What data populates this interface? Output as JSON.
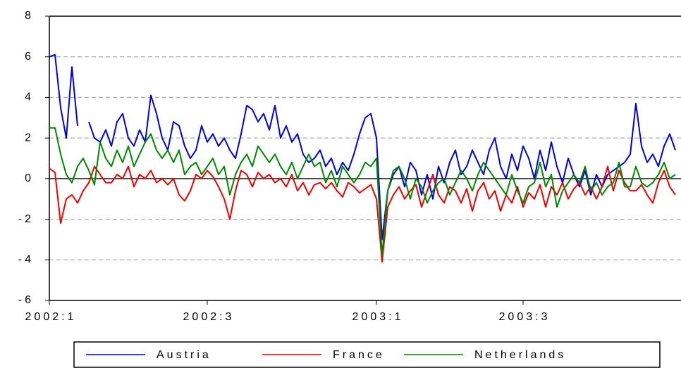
{
  "chart_data": {
    "type": "line",
    "categories": [
      "2002:1",
      null,
      null,
      null,
      null,
      null,
      null,
      null,
      null,
      null,
      null,
      null,
      null,
      null,
      null,
      null,
      null,
      null,
      null,
      null,
      null,
      null,
      null,
      null,
      null,
      null,
      null,
      null,
      "2002:3",
      null,
      null,
      null,
      null,
      null,
      null,
      null,
      null,
      null,
      null,
      null,
      null,
      null,
      null,
      null,
      null,
      null,
      null,
      null,
      null,
      null,
      null,
      null,
      null,
      null,
      null,
      null,
      null,
      null,
      "2003:1",
      null,
      null,
      null,
      null,
      null,
      null,
      null,
      null,
      null,
      null,
      null,
      null,
      null,
      null,
      null,
      null,
      null,
      null,
      null,
      null,
      null,
      null,
      null,
      null,
      null,
      "2003:3",
      null,
      null,
      null,
      null,
      null,
      null,
      null,
      null,
      null,
      null,
      null,
      null,
      null,
      null,
      null,
      null,
      null,
      null,
      null,
      null,
      null,
      null,
      null,
      null,
      null,
      null,
      null
    ],
    "series": [
      {
        "name": "Austria",
        "color": "#0000dd",
        "values": [
          6.0,
          6.1,
          3.5,
          2.0,
          5.5,
          2.6,
          null,
          2.8,
          2.0,
          1.8,
          2.4,
          1.6,
          2.8,
          3.2,
          2.0,
          1.6,
          2.4,
          1.8,
          4.1,
          3.2,
          2.0,
          1.4,
          2.8,
          2.6,
          1.6,
          1.0,
          1.4,
          2.6,
          1.8,
          2.2,
          1.6,
          2.0,
          1.4,
          1.0,
          2.2,
          3.6,
          3.4,
          2.8,
          3.2,
          2.4,
          3.6,
          2.0,
          2.6,
          1.8,
          2.2,
          1.2,
          0.8,
          1.0,
          1.4,
          0.6,
          1.0,
          0.2,
          0.8,
          0.4,
          1.2,
          2.2,
          3.0,
          3.2,
          2.0,
          -3.0,
          -0.6,
          0.2,
          0.6,
          -0.4,
          0.8,
          0.4,
          -0.8,
          0.2,
          -1.0,
          0.6,
          -0.2,
          0.8,
          1.4,
          0.2,
          0.6,
          1.4,
          0.8,
          0.2,
          1.4,
          2.0,
          0.6,
          0.0,
          1.2,
          0.4,
          1.6,
          1.0,
          0.0,
          1.4,
          0.4,
          1.8,
          0.6,
          -0.2,
          1.0,
          0.2,
          -0.4,
          0.4,
          -0.8,
          0.2,
          -0.4,
          0.2,
          0.4,
          0.6,
          0.8,
          1.2,
          3.7,
          1.6,
          0.8,
          1.2,
          0.6,
          1.6,
          2.2,
          1.4
        ]
      },
      {
        "name": "France",
        "color": "#ee0000",
        "values": [
          0.5,
          0.3,
          -2.2,
          -1.0,
          -0.8,
          -1.2,
          -0.6,
          -0.2,
          0.6,
          0.2,
          -0.2,
          -0.2,
          0.2,
          0.0,
          0.6,
          -0.4,
          0.2,
          0.0,
          0.4,
          -0.2,
          0.0,
          -0.3,
          0.0,
          -0.8,
          -1.1,
          -0.6,
          0.2,
          0.0,
          0.4,
          0.1,
          -0.4,
          -1.0,
          -2.0,
          -0.6,
          0.4,
          0.2,
          -0.4,
          0.3,
          0.0,
          0.2,
          -0.2,
          0.0,
          -0.4,
          0.2,
          -0.6,
          -0.2,
          -0.8,
          -0.3,
          -0.2,
          -0.5,
          -0.2,
          -0.6,
          -0.9,
          -0.2,
          -0.4,
          -0.7,
          -0.5,
          -0.3,
          -1.0,
          -4.1,
          -1.4,
          -0.8,
          -0.4,
          -1.0,
          -0.6,
          -0.3,
          -1.4,
          -0.6,
          0.2,
          -0.8,
          -1.2,
          -0.4,
          -0.6,
          -1.2,
          -0.5,
          -1.6,
          -0.6,
          -0.2,
          -1.0,
          -0.6,
          -1.6,
          -0.8,
          -1.2,
          -0.4,
          -1.4,
          -0.7,
          -1.0,
          -0.3,
          -1.4,
          -0.4,
          -0.8,
          -0.2,
          -1.0,
          -0.5,
          -0.2,
          -0.8,
          -0.4,
          -1.0,
          -0.4,
          0.6,
          -0.6,
          0.4,
          -0.2,
          -0.6,
          -0.6,
          -0.3,
          -0.8,
          -1.2,
          -0.2,
          0.4,
          -0.4,
          -0.8
        ]
      },
      {
        "name": "Netherlands",
        "color": "#008800",
        "values": [
          2.5,
          2.5,
          1.2,
          0.2,
          -0.2,
          0.6,
          1.0,
          0.4,
          -0.3,
          1.8,
          1.0,
          0.6,
          1.4,
          0.8,
          1.6,
          0.6,
          1.2,
          1.8,
          2.2,
          1.4,
          1.0,
          1.4,
          0.8,
          1.4,
          0.2,
          0.6,
          0.8,
          0.2,
          0.6,
          1.0,
          0.2,
          0.6,
          -0.8,
          0.2,
          0.8,
          1.2,
          0.6,
          1.6,
          1.2,
          0.8,
          1.2,
          0.6,
          0.2,
          0.8,
          0.0,
          0.6,
          1.2,
          0.6,
          0.8,
          -0.2,
          0.4,
          -0.4,
          0.6,
          0.2,
          -0.2,
          0.2,
          0.8,
          0.6,
          1.0,
          -3.8,
          -0.6,
          0.4,
          0.6,
          0.0,
          -1.0,
          0.0,
          -0.4,
          -1.2,
          -0.6,
          -0.2,
          0.0,
          -0.8,
          -0.2,
          0.4,
          0.0,
          -0.6,
          0.2,
          0.8,
          0.4,
          0.0,
          -0.4,
          -0.8,
          0.2,
          -0.6,
          -1.2,
          -0.4,
          -0.2,
          0.8,
          -0.4,
          0.2,
          -1.4,
          -0.6,
          -0.2,
          0.2,
          -0.2,
          0.6,
          -0.6,
          -0.2,
          -0.8,
          -0.4,
          -0.2,
          0.8,
          -0.4,
          -0.4,
          0.6,
          -0.2,
          -0.4,
          -0.2,
          0.2,
          0.8,
          0.0,
          0.2
        ]
      }
    ],
    "ylim": [
      -6,
      8
    ],
    "yticks": [
      -6,
      -4,
      -2,
      0,
      2,
      4,
      6,
      8
    ],
    "grid": true,
    "legend": "bottom"
  }
}
